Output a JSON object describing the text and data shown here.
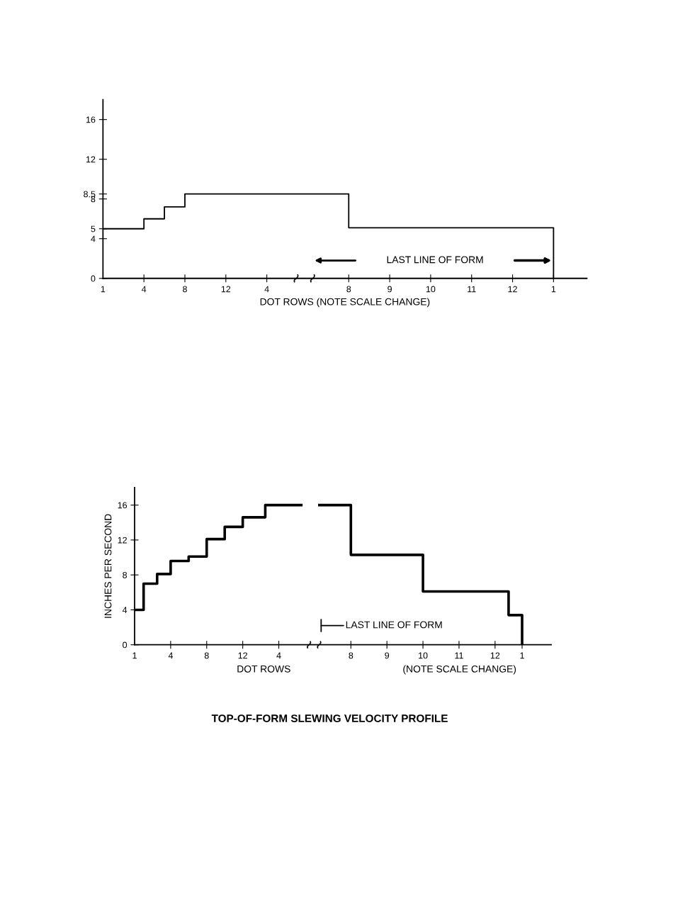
{
  "chart_data": [
    {
      "type": "step",
      "xlabel": "DOT ROWS (NOTE SCALE CHANGE)",
      "categories": [
        "1",
        null,
        "4",
        null,
        "8",
        null,
        "12",
        null,
        "4",
        null,
        null,
        null,
        "8",
        null,
        "9",
        null,
        "10",
        null,
        "11",
        null,
        "12",
        null,
        "1",
        null
      ],
      "series": [
        {
          "color": "#000000",
          "values": [
            5,
            5,
            6,
            7.2,
            8.5,
            8.5,
            8.5,
            8.5,
            8.5,
            8.5,
            8.5,
            8.5,
            5.1,
            5.1,
            5.1,
            5.1,
            5.1,
            5.1,
            5.1,
            5.1,
            5.1,
            5.1,
            0,
            null
          ]
        }
      ],
      "ylim": [
        0,
        18
      ],
      "yticks": [
        0,
        4,
        5,
        8,
        8.5,
        12,
        16
      ],
      "annotations": [
        "LAST LINE OF FORM"
      ],
      "grid": false
    },
    {
      "type": "step",
      "xlabel": "DOT ROWS",
      "ylabel": "INCHES PER SECOND",
      "categories": [
        "1",
        null,
        null,
        null,
        null,
        null,
        null,
        null,
        "4",
        null,
        null,
        null,
        null,
        null,
        null,
        null,
        "8",
        null,
        null,
        null,
        null,
        null,
        null,
        null,
        "12",
        null,
        null,
        null,
        null,
        null,
        null,
        null,
        "4",
        null,
        null,
        null,
        null,
        null,
        null,
        null,
        null,
        null,
        null,
        null,
        null,
        null,
        null,
        null,
        "8",
        null,
        null,
        null,
        null,
        null,
        null,
        null,
        "9",
        null,
        null,
        null,
        null,
        null,
        null,
        null,
        "10",
        null,
        null,
        null,
        null,
        null,
        null,
        null,
        "11",
        null,
        null,
        null,
        null,
        null,
        null,
        null,
        "12",
        null,
        null,
        null,
        null,
        null,
        "1",
        null,
        null,
        null,
        null
      ],
      "series": [
        {
          "color": "#000000",
          "values": [
            4,
            4,
            7,
            7,
            7,
            8.1,
            8.1,
            8.1,
            9.6,
            9.6,
            9.6,
            9.6,
            10.1,
            10.1,
            10.1,
            10.1,
            12.1,
            12.1,
            12.1,
            12.1,
            13.5,
            13.5,
            13.5,
            13.5,
            14.6,
            14.6,
            14.6,
            14.6,
            14.6,
            16,
            16,
            16,
            16,
            16,
            16,
            16,
            16,
            null,
            null,
            null,
            null,
            16,
            16,
            16,
            16,
            16,
            16,
            16,
            10.3,
            10.3,
            10.3,
            10.3,
            10.3,
            10.3,
            10.3,
            10.3,
            10.3,
            10.3,
            10.3,
            10.3,
            10.3,
            10.3,
            10.3,
            10.3,
            6.1,
            6.1,
            6.1,
            6.1,
            6.1,
            6.1,
            6.1,
            6.1,
            6.1,
            6.1,
            6.1,
            6.1,
            6.1,
            6.1,
            6.1,
            6.1,
            6.1,
            6.1,
            6.1,
            3.4,
            3.4,
            3.4,
            0,
            null,
            null,
            null,
            null
          ]
        }
      ],
      "ylim": [
        0,
        18
      ],
      "yticks": [
        0,
        4,
        8,
        12,
        16
      ],
      "annotations": [
        "LAST LINE OF FORM",
        "(NOTE SCALE CHANGE)",
        "TOP-OF-FORM SLEWING VELOCITY PROFILE"
      ],
      "grid": false
    }
  ]
}
